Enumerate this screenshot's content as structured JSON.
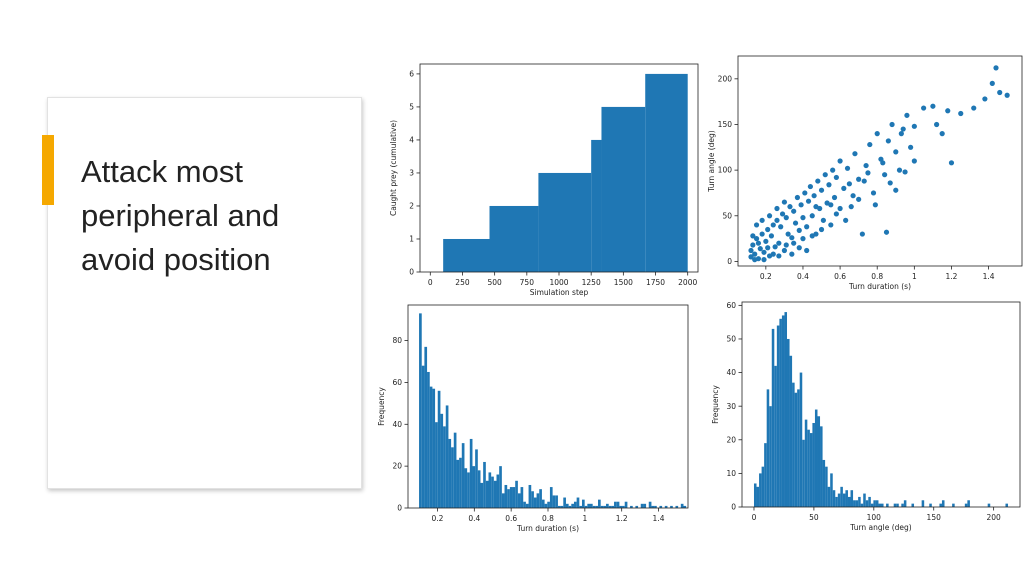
{
  "slide": {
    "heading_lines": [
      "Attack most",
      "peripheral and",
      "avoid position"
    ],
    "accent_color": "#F5A800"
  },
  "chart_data": [
    {
      "type": "area",
      "style": "step",
      "color": "#1f77b4",
      "title": "",
      "xlabel": "Simulation step",
      "ylabel": "Caught prey (cumulative)",
      "xlim": [
        -80,
        2080
      ],
      "ylim": [
        0,
        6.3
      ],
      "xticks": [
        0,
        250,
        500,
        750,
        1000,
        1250,
        1500,
        1750,
        2000
      ],
      "yticks": [
        0,
        1,
        2,
        3,
        4,
        5,
        6
      ],
      "steps": [
        {
          "x_start": 100,
          "x_end": 460,
          "value": 1
        },
        {
          "x_start": 460,
          "x_end": 840,
          "value": 2
        },
        {
          "x_start": 840,
          "x_end": 1250,
          "value": 3
        },
        {
          "x_start": 1250,
          "x_end": 1330,
          "value": 4
        },
        {
          "x_start": 1330,
          "x_end": 1670,
          "value": 5
        },
        {
          "x_start": 1670,
          "x_end": 2000,
          "value": 6
        }
      ]
    },
    {
      "type": "scatter",
      "color": "#1f77b4",
      "title": "",
      "xlabel": "Turn duration (s)",
      "ylabel": "Turn angle (deg)",
      "xlim": [
        0.05,
        1.58
      ],
      "ylim": [
        -5,
        225
      ],
      "xticks": [
        0.2,
        0.4,
        0.6,
        0.8,
        1.0,
        1.2,
        1.4
      ],
      "yticks": [
        0,
        50,
        100,
        150,
        200
      ],
      "points": [
        [
          0.12,
          5
        ],
        [
          0.12,
          12
        ],
        [
          0.13,
          18
        ],
        [
          0.14,
          8
        ],
        [
          0.15,
          25
        ],
        [
          0.16,
          3
        ],
        [
          0.17,
          14
        ],
        [
          0.18,
          30
        ],
        [
          0.19,
          10
        ],
        [
          0.2,
          22
        ],
        [
          0.21,
          35
        ],
        [
          0.22,
          6
        ],
        [
          0.23,
          28
        ],
        [
          0.24,
          40
        ],
        [
          0.25,
          16
        ],
        [
          0.26,
          45
        ],
        [
          0.27,
          20
        ],
        [
          0.28,
          38
        ],
        [
          0.29,
          52
        ],
        [
          0.3,
          12
        ],
        [
          0.31,
          48
        ],
        [
          0.32,
          30
        ],
        [
          0.33,
          60
        ],
        [
          0.34,
          26
        ],
        [
          0.35,
          55
        ],
        [
          0.36,
          42
        ],
        [
          0.37,
          70
        ],
        [
          0.38,
          34
        ],
        [
          0.39,
          62
        ],
        [
          0.4,
          48
        ],
        [
          0.41,
          75
        ],
        [
          0.42,
          38
        ],
        [
          0.43,
          66
        ],
        [
          0.44,
          82
        ],
        [
          0.45,
          50
        ],
        [
          0.46,
          72
        ],
        [
          0.47,
          30
        ],
        [
          0.48,
          88
        ],
        [
          0.49,
          58
        ],
        [
          0.5,
          78
        ],
        [
          0.52,
          95
        ],
        [
          0.53,
          64
        ],
        [
          0.54,
          84
        ],
        [
          0.55,
          40
        ],
        [
          0.56,
          100
        ],
        [
          0.57,
          70
        ],
        [
          0.58,
          92
        ],
        [
          0.6,
          110
        ],
        [
          0.62,
          80
        ],
        [
          0.64,
          102
        ],
        [
          0.66,
          60
        ],
        [
          0.68,
          118
        ],
        [
          0.7,
          90
        ],
        [
          0.72,
          30
        ],
        [
          0.74,
          105
        ],
        [
          0.76,
          128
        ],
        [
          0.78,
          75
        ],
        [
          0.8,
          140
        ],
        [
          0.82,
          112
        ],
        [
          0.84,
          95
        ],
        [
          0.86,
          132
        ],
        [
          0.88,
          150
        ],
        [
          0.9,
          120
        ],
        [
          0.92,
          100
        ],
        [
          0.94,
          145
        ],
        [
          0.96,
          160
        ],
        [
          0.98,
          125
        ],
        [
          1.0,
          110
        ],
        [
          1.05,
          168
        ],
        [
          1.1,
          170
        ],
        [
          1.15,
          140
        ],
        [
          1.18,
          165
        ],
        [
          1.2,
          108
        ],
        [
          1.25,
          162
        ],
        [
          1.32,
          168
        ],
        [
          1.38,
          178
        ],
        [
          1.42,
          195
        ],
        [
          1.44,
          212
        ],
        [
          1.46,
          185
        ],
        [
          1.5,
          182
        ],
        [
          0.13,
          28
        ],
        [
          0.15,
          40
        ],
        [
          0.18,
          45
        ],
        [
          0.22,
          50
        ],
        [
          0.26,
          58
        ],
        [
          0.3,
          65
        ],
        [
          0.35,
          20
        ],
        [
          0.4,
          25
        ],
        [
          0.45,
          28
        ],
        [
          0.5,
          35
        ],
        [
          0.55,
          62
        ],
        [
          0.6,
          58
        ],
        [
          0.65,
          85
        ],
        [
          0.7,
          68
        ],
        [
          0.75,
          97
        ],
        [
          0.85,
          32
        ],
        [
          0.9,
          78
        ],
        [
          0.95,
          98
        ],
        [
          1.0,
          148
        ],
        [
          1.12,
          150
        ],
        [
          0.14,
          2
        ],
        [
          0.16,
          20
        ],
        [
          0.19,
          2
        ],
        [
          0.21,
          15
        ],
        [
          0.24,
          8
        ],
        [
          0.27,
          6
        ],
        [
          0.31,
          18
        ],
        [
          0.34,
          8
        ],
        [
          0.38,
          15
        ],
        [
          0.42,
          12
        ],
        [
          0.47,
          60
        ],
        [
          0.51,
          45
        ],
        [
          0.58,
          52
        ],
        [
          0.63,
          45
        ],
        [
          0.67,
          72
        ],
        [
          0.73,
          88
        ],
        [
          0.79,
          62
        ],
        [
          0.83,
          108
        ],
        [
          0.87,
          86
        ],
        [
          0.93,
          140
        ]
      ]
    },
    {
      "type": "bar",
      "style": "histogram",
      "color": "#1f77b4",
      "title": "",
      "xlabel": "Turn duration (s)",
      "ylabel": "Frequency",
      "xlim": [
        0.04,
        1.56
      ],
      "ylim": [
        0,
        97
      ],
      "xticks": [
        0.2,
        0.4,
        0.6,
        0.8,
        1.0,
        1.2,
        1.4
      ],
      "yticks": [
        0,
        20,
        40,
        60,
        80
      ],
      "bin_start": 0.1,
      "bin_width": 0.0145,
      "values": [
        93,
        68,
        77,
        65,
        58,
        57,
        41,
        56,
        45,
        39,
        49,
        33,
        29,
        36,
        23,
        24,
        31,
        19,
        17,
        33,
        20,
        28,
        18,
        12,
        22,
        13,
        17,
        15,
        13,
        16,
        20,
        7,
        11,
        9,
        10,
        10,
        13,
        7,
        10,
        3,
        2,
        11,
        8,
        5,
        7,
        9,
        4,
        2,
        3,
        10,
        6,
        6,
        1,
        1,
        5,
        2,
        1,
        2,
        3,
        5,
        1,
        4,
        1,
        2,
        2,
        1,
        1,
        4,
        1,
        1,
        2,
        1,
        1,
        3,
        3,
        1,
        1,
        3,
        0,
        1,
        0,
        1,
        0,
        2,
        2,
        0,
        3,
        1,
        1,
        0,
        1,
        0,
        1,
        0,
        1,
        0,
        1,
        0,
        2,
        1
      ]
    },
    {
      "type": "bar",
      "style": "histogram",
      "color": "#1f77b4",
      "title": "",
      "xlabel": "Turn angle (deg)",
      "ylabel": "Frequency",
      "xlim": [
        -10,
        222
      ],
      "ylim": [
        0,
        61
      ],
      "xticks": [
        0,
        50,
        100,
        150,
        200
      ],
      "yticks": [
        0,
        10,
        20,
        30,
        40,
        50,
        60
      ],
      "bin_start": 0,
      "bin_width": 2.12,
      "values": [
        7,
        6,
        10,
        12,
        19,
        35,
        30,
        53,
        42,
        54,
        56,
        57,
        58,
        50,
        45,
        37,
        34,
        35,
        40,
        20,
        26,
        23,
        22,
        25,
        29,
        27,
        24,
        14,
        12,
        6,
        10,
        5,
        3,
        4,
        6,
        4,
        5,
        3,
        5,
        2,
        2,
        3,
        1,
        4,
        2,
        3,
        1,
        2,
        2,
        1,
        1,
        0,
        1,
        0,
        0,
        1,
        1,
        0,
        1,
        2,
        0,
        0,
        1,
        0,
        0,
        0,
        2,
        0,
        0,
        1,
        0,
        0,
        0,
        1,
        2,
        0,
        0,
        0,
        1,
        0,
        0,
        0,
        0,
        1,
        2,
        0,
        0,
        0,
        0,
        0,
        0,
        0,
        1,
        0,
        0,
        0,
        0,
        0,
        0,
        1
      ]
    }
  ]
}
